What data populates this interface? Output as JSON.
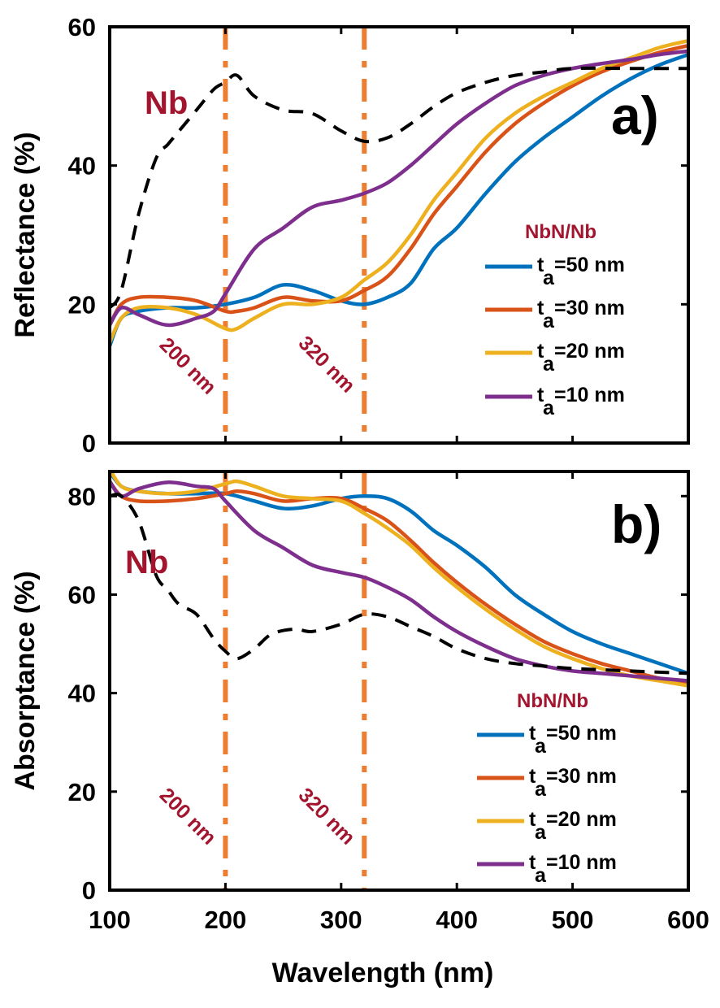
{
  "chart_data": [
    {
      "type": "line",
      "panel_label": "a)",
      "ylabel": "Reflectance (%)",
      "xlabel": "",
      "xlim": [
        100,
        600
      ],
      "ylim": [
        0,
        60
      ],
      "xticks": [
        "100",
        "200",
        "300",
        "400",
        "500",
        "600"
      ],
      "yticks": [
        "0",
        "20",
        "40",
        "60"
      ],
      "grid": false,
      "reference_lines": [
        {
          "x": 200,
          "label": "200 nm"
        },
        {
          "x": 320,
          "label": "320 nm"
        }
      ],
      "reference_color": "#ed7d31",
      "annotation": "Nb",
      "legend": {
        "title": "NbN/Nb",
        "placement": "right"
      },
      "series": [
        {
          "name_symbol": "t",
          "name_sub": "a",
          "name_rest": "=50 nm",
          "color": "#0072bd",
          "dashed": false,
          "x": [
            100,
            110,
            125,
            150,
            175,
            200,
            225,
            250,
            275,
            300,
            320,
            340,
            360,
            380,
            400,
            425,
            450,
            475,
            500,
            525,
            550,
            575,
            600
          ],
          "y": [
            14,
            18,
            19,
            19.5,
            19.5,
            20,
            21,
            22.8,
            22,
            20.5,
            20,
            21,
            23,
            28,
            31,
            36,
            40.5,
            44,
            47,
            50,
            52.5,
            54.5,
            56
          ]
        },
        {
          "name_symbol": "t",
          "name_sub": "a",
          "name_rest": "=30 nm",
          "color": "#d95319",
          "dashed": false,
          "x": [
            100,
            110,
            125,
            150,
            175,
            200,
            210,
            225,
            250,
            275,
            300,
            320,
            340,
            360,
            380,
            400,
            425,
            450,
            475,
            500,
            525,
            550,
            575,
            600
          ],
          "y": [
            17,
            20,
            21,
            21,
            20.5,
            19,
            19,
            19.5,
            21,
            20.5,
            20.5,
            22,
            24,
            28,
            33,
            37,
            42,
            46,
            49,
            51.5,
            53.5,
            55,
            56.3,
            57.3
          ]
        },
        {
          "name_symbol": "t",
          "name_sub": "a",
          "name_rest": "=20 nm",
          "color": "#edb120",
          "dashed": false,
          "x": [
            100,
            110,
            125,
            150,
            175,
            200,
            210,
            225,
            250,
            275,
            300,
            320,
            340,
            360,
            380,
            400,
            425,
            450,
            475,
            500,
            525,
            550,
            575,
            600
          ],
          "y": [
            14.5,
            18,
            19.5,
            19.5,
            18.5,
            16.5,
            16.5,
            18,
            20,
            20,
            21,
            23.5,
            26,
            30,
            35,
            39,
            44,
            47.5,
            50,
            52,
            54,
            55.5,
            57,
            58
          ]
        },
        {
          "name_symbol": "t",
          "name_sub": "a",
          "name_rest": "=10 nm",
          "color": "#7e2f8e",
          "dashed": false,
          "x": [
            100,
            110,
            125,
            150,
            175,
            190,
            200,
            225,
            250,
            275,
            300,
            320,
            340,
            360,
            380,
            400,
            425,
            450,
            475,
            500,
            525,
            550,
            575,
            600
          ],
          "y": [
            17,
            19.5,
            18.5,
            17,
            18,
            19,
            21.5,
            28,
            31,
            34,
            35,
            36,
            37.5,
            40,
            43,
            46,
            49,
            51.5,
            53,
            54,
            54.7,
            55.3,
            56,
            56.5
          ]
        },
        {
          "name_symbol": "",
          "name_sub": "",
          "name_rest": "",
          "label": "Nb",
          "color": "#000000",
          "dashed": true,
          "x": [
            100,
            110,
            125,
            140,
            150,
            160,
            175,
            190,
            200,
            210,
            225,
            250,
            275,
            300,
            320,
            340,
            360,
            380,
            400,
            425,
            450,
            475,
            500,
            550,
            600
          ],
          "y": [
            19.5,
            22,
            33,
            41,
            43,
            45,
            48,
            51,
            52,
            53,
            50,
            48,
            47.5,
            45,
            43.5,
            44,
            46,
            48.5,
            50.5,
            52,
            53,
            53.5,
            54,
            54,
            54
          ]
        }
      ]
    },
    {
      "type": "line",
      "panel_label": "b)",
      "ylabel": "Absorptance (%)",
      "xlabel": "Wavelength (nm)",
      "xlim": [
        100,
        600
      ],
      "ylim": [
        0,
        85
      ],
      "xticks": [
        "100",
        "200",
        "300",
        "400",
        "500",
        "600"
      ],
      "yticks": [
        "0",
        "20",
        "40",
        "60",
        "80"
      ],
      "grid": false,
      "reference_lines": [
        {
          "x": 200,
          "label": "200 nm"
        },
        {
          "x": 320,
          "label": "320 nm"
        }
      ],
      "reference_color": "#ed7d31",
      "annotation": "Nb",
      "legend": {
        "title": "NbN/Nb",
        "placement": "bottom-right"
      },
      "series": [
        {
          "name_symbol": "t",
          "name_sub": "a",
          "name_rest": "=50 nm",
          "color": "#0072bd",
          "dashed": false,
          "x": [
            100,
            110,
            125,
            150,
            175,
            200,
            225,
            250,
            275,
            300,
            320,
            340,
            360,
            380,
            400,
            425,
            450,
            475,
            500,
            525,
            550,
            575,
            600
          ],
          "y": [
            85,
            82,
            81,
            80.5,
            80.5,
            80.5,
            79,
            77.5,
            78,
            79.5,
            80,
            79.5,
            77,
            73,
            70,
            65.5,
            60,
            56,
            52.5,
            50,
            48,
            46,
            44
          ]
        },
        {
          "name_symbol": "t",
          "name_sub": "a",
          "name_rest": "=30 nm",
          "color": "#d95319",
          "dashed": false,
          "x": [
            100,
            110,
            125,
            150,
            175,
            200,
            210,
            225,
            250,
            275,
            300,
            320,
            340,
            360,
            380,
            400,
            425,
            450,
            475,
            500,
            525,
            550,
            575,
            600
          ],
          "y": [
            83,
            80,
            79,
            79,
            79.5,
            80.5,
            81,
            80.5,
            79,
            79.5,
            79.5,
            77.5,
            75,
            71,
            66.5,
            62.5,
            58,
            54,
            50.5,
            48,
            46,
            44.5,
            43,
            42
          ]
        },
        {
          "name_symbol": "t",
          "name_sub": "a",
          "name_rest": "=20 nm",
          "color": "#edb120",
          "dashed": false,
          "x": [
            100,
            110,
            125,
            150,
            175,
            200,
            210,
            225,
            250,
            275,
            300,
            320,
            340,
            360,
            380,
            400,
            425,
            450,
            475,
            500,
            525,
            550,
            575,
            600
          ],
          "y": [
            85.5,
            82,
            81,
            80.5,
            81,
            82.5,
            83,
            82,
            80,
            79.5,
            79,
            76.5,
            73.5,
            70,
            65.5,
            61.5,
            57,
            53,
            49.5,
            47,
            45,
            43.5,
            42.5,
            41.5
          ]
        },
        {
          "name_symbol": "t",
          "name_sub": "a",
          "name_rest": "=10 nm",
          "color": "#7e2f8e",
          "dashed": false,
          "x": [
            100,
            110,
            125,
            150,
            175,
            190,
            200,
            225,
            250,
            275,
            300,
            320,
            340,
            360,
            380,
            400,
            425,
            450,
            475,
            500,
            525,
            550,
            575,
            600
          ],
          "y": [
            83,
            80,
            81.5,
            82.8,
            82,
            81.5,
            79,
            73,
            69.5,
            66,
            64.5,
            63.5,
            61.5,
            59,
            55.5,
            52.5,
            49.5,
            47,
            45.5,
            44.5,
            44,
            43.5,
            43,
            42.5
          ]
        },
        {
          "name_symbol": "",
          "name_sub": "",
          "name_rest": "",
          "label": "Nb",
          "color": "#000000",
          "dashed": true,
          "x": [
            100,
            110,
            125,
            140,
            150,
            160,
            175,
            190,
            200,
            210,
            225,
            240,
            260,
            275,
            300,
            320,
            340,
            360,
            380,
            400,
            425,
            450,
            475,
            500,
            550,
            600
          ],
          "y": [
            80,
            80,
            75,
            64,
            61,
            58,
            56,
            51,
            48.5,
            47,
            49,
            52,
            53,
            52.5,
            54,
            56,
            55.5,
            53.5,
            51.5,
            49,
            47,
            46,
            45.5,
            45,
            44.5,
            44
          ]
        }
      ]
    }
  ]
}
